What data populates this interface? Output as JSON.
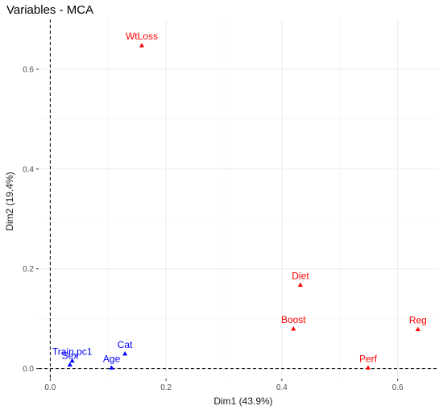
{
  "chart_data": {
    "type": "scatter",
    "title": "Variables - MCA",
    "xlabel": "Dim1 (43.9%)",
    "ylabel": "Dim2 (19.4%)",
    "xlim": [
      -0.02,
      0.67
    ],
    "ylim": [
      -0.02,
      0.7
    ],
    "x_ticks": [
      0.0,
      0.2,
      0.4,
      0.6
    ],
    "x_tick_labels": [
      "0.0",
      "0.2",
      "0.4",
      "0.6"
    ],
    "y_ticks": [
      0.0,
      0.2,
      0.4,
      0.6
    ],
    "y_tick_labels": [
      "0.0",
      "0.2",
      "0.4",
      "0.6"
    ],
    "grid": true,
    "reference_lines": {
      "x": 0,
      "y": 0,
      "style": "dashed"
    },
    "series": [
      {
        "color": "#ff0000",
        "marker": "triangle",
        "points": [
          {
            "label": "WtLoss",
            "x": 0.158,
            "y": 0.648
          },
          {
            "label": "Diet",
            "x": 0.432,
            "y": 0.168
          },
          {
            "label": "Boost",
            "x": 0.42,
            "y": 0.08
          },
          {
            "label": "Reg",
            "x": 0.635,
            "y": 0.079
          },
          {
            "label": "Perf",
            "x": 0.549,
            "y": 0.002
          }
        ]
      },
      {
        "color": "#0000ff",
        "marker": "triangle",
        "points": [
          {
            "label": "Cat",
            "x": 0.129,
            "y": 0.03
          },
          {
            "label": "Age",
            "x": 0.106,
            "y": 0.002
          },
          {
            "label": "Train.pc1",
            "x": 0.038,
            "y": 0.016
          },
          {
            "label": "Sex",
            "x": 0.034,
            "y": 0.008
          }
        ]
      }
    ]
  }
}
